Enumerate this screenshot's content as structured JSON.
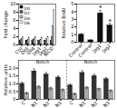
{
  "chart_data": [
    {
      "type": "bar",
      "categories": [
        "Ctrl",
        "Dll1",
        "Dll4",
        "Jag1",
        "Jag2",
        "NICD"
      ],
      "series": [
        {
          "name": "D0",
          "color": "#111111",
          "values": [
            1.0,
            1.0,
            1.0,
            1.0,
            1.0,
            1.0
          ]
        },
        {
          "name": "D2",
          "color": "#555555",
          "values": [
            1.2,
            1.1,
            1.2,
            1.1,
            1.1,
            2.0
          ]
        },
        {
          "name": "D4",
          "color": "#aaaaaa",
          "values": [
            1.5,
            1.3,
            1.5,
            1.3,
            1.4,
            4.5
          ]
        },
        {
          "name": "D6",
          "color": "#eeeeee",
          "values": [
            2.0,
            1.8,
            2.0,
            1.8,
            1.9,
            8.5
          ]
        }
      ],
      "ylabel": "Fold change",
      "ylim": [
        0,
        10
      ],
      "yticks": [
        0,
        2,
        4,
        6,
        8,
        10
      ],
      "legend": "upper left"
    },
    {
      "type": "bar",
      "categories": [
        "Control",
        "Control",
        "Jag1",
        "Jag2"
      ],
      "values": [
        1.0,
        0.25,
        3.8,
        2.2
      ],
      "errors": [
        0.12,
        0.04,
        0.35,
        0.25
      ],
      "color": "#111111",
      "ylabel": "Relative BrdU",
      "ylim": [
        0,
        5
      ],
      "yticks": [
        0,
        1,
        2,
        3,
        4,
        5
      ],
      "annotations": [
        {
          "text": "*",
          "x": 2,
          "y": 4.2
        },
        {
          "text": "*",
          "x": 3,
          "y": 2.5
        }
      ]
    },
    {
      "type": "bar",
      "categories": [
        "C",
        "N1",
        "N2",
        "N3",
        "C",
        "N1",
        "N2",
        "N3"
      ],
      "series": [
        {
          "color": "#333333",
          "values": [
            1.0,
            1.8,
            1.6,
            1.4,
            0.9,
            1.7,
            1.5,
            1.3
          ],
          "errors": [
            0.1,
            0.15,
            0.12,
            0.1,
            0.08,
            0.14,
            0.11,
            0.09
          ]
        },
        {
          "color": "#aaaaaa",
          "values": [
            0.4,
            0.8,
            0.7,
            0.6,
            0.35,
            0.75,
            0.65,
            0.55
          ],
          "errors": [
            0.05,
            0.08,
            0.07,
            0.06,
            0.04,
            0.07,
            0.06,
            0.05
          ]
        }
      ],
      "ylabel": "Relative units",
      "ylim": [
        0,
        2.5
      ],
      "yticks": [
        0,
        0.5,
        {
          "value": 1.0,
          "label": "1.0"
        },
        1.5,
        {
          "value": 2.0,
          "label": "2.0"
        }
      ],
      "annotations": [
        {
          "text": "Notch",
          "x": 1.5,
          "y": 2.3
        },
        {
          "text": "Notch",
          "x": 5.5,
          "y": 2.3
        },
        {
          "type": "vline",
          "x": 3.5,
          "line_style": "dashed"
        }
      ]
    }
  ]
}
